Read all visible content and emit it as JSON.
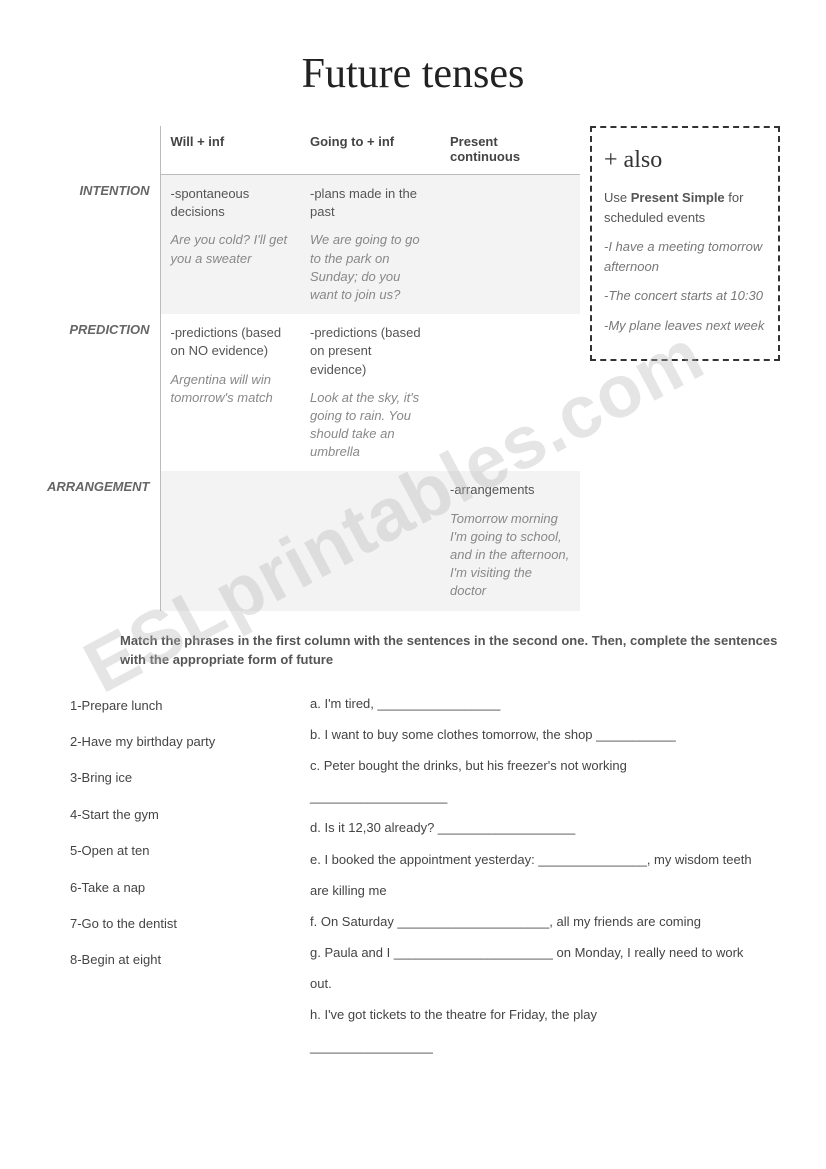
{
  "title": "Future tenses",
  "columns": {
    "c1": "Will + inf",
    "c2": "Going to + inf",
    "c3": "Present continuous"
  },
  "rows": {
    "intention": {
      "label": "INTENTION",
      "c1_desc": "-spontaneous decisions",
      "c1_ex": "Are you cold? I'll get you a sweater",
      "c2_desc": "-plans made in the past",
      "c2_ex": "We are going to go to the park on Sunday; do you want to join us?",
      "c3_desc": "",
      "c3_ex": ""
    },
    "prediction": {
      "label": "PREDICTION",
      "c1_desc": "-predictions (based on NO evidence)",
      "c1_ex": "Argentina will win tomorrow's match",
      "c2_desc": "-predictions (based on present evidence)",
      "c2_ex": "Look at the sky, it's going to rain. You should take an umbrella",
      "c3_desc": "",
      "c3_ex": ""
    },
    "arrangement": {
      "label": "ARRANGEMENT",
      "c1_desc": "",
      "c1_ex": "",
      "c2_desc": "",
      "c2_ex": "",
      "c3_desc": "-arrangements",
      "c3_ex": "Tomorrow morning I'm going to school, and in the afternoon, I'm visiting the doctor"
    }
  },
  "also": {
    "title": "+ also",
    "intro_pre": "Use ",
    "intro_bold": "Present Simple",
    "intro_post": " for scheduled events",
    "ex1": "-I have a meeting tomorrow afternoon",
    "ex2": "-The concert starts at 10:30",
    "ex3": "-My plane leaves next week"
  },
  "instructions": "Match the phrases in the first column with the sentences in the second one. Then, complete the sentences with the appropriate form of future",
  "left": {
    "i1": "1-Prepare lunch",
    "i2": "2-Have my birthday party",
    "i3": "3-Bring ice",
    "i4": "4-Start the gym",
    "i5": "5-Open at ten",
    "i6": "6-Take a nap",
    "i7": "7-Go to the dentist",
    "i8": "8-Begin at eight"
  },
  "right": {
    "a": "a.  I'm tired, _________________",
    "b": "b.  I want to buy some clothes tomorrow, the shop ___________",
    "c": "c. Peter bought the drinks, but his freezer's not working",
    "c2": "___________________",
    "d": "d. Is it 12,30 already? ___________________",
    "e": "e. I booked the appointment yesterday: _______________, my wisdom teeth are killing me",
    "f": "f. On Saturday _____________________, all my friends are coming",
    "g": "g. Paula and I ______________________ on Monday, I really need to work out.",
    "h": "h. I've got tickets to the theatre for Friday, the play",
    "h2": "_________________"
  },
  "watermark": "ESLprintables.com"
}
